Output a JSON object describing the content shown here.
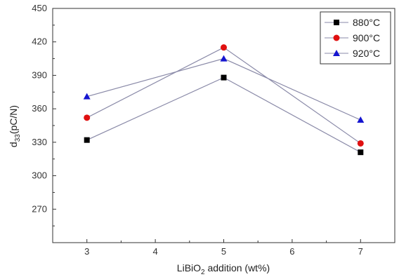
{
  "chart_data": {
    "type": "line",
    "xlabel": {
      "main": "LiBiO",
      "sub": "2",
      "rest": " addition (wt%)"
    },
    "ylabel": {
      "main": "d",
      "sub": "33",
      "rest": "(pC/N)"
    },
    "x_ticks": [
      "3",
      "4",
      "5",
      "6",
      "7"
    ],
    "y_ticks": [
      "270",
      "300",
      "330",
      "360",
      "390",
      "420",
      "450"
    ],
    "xlim": [
      2.5,
      7.5
    ],
    "ylim": [
      240,
      450
    ],
    "grid": false,
    "legend_position": "top-right",
    "x": [
      3,
      5,
      7
    ],
    "series": [
      {
        "name": "880°C",
        "marker": "square",
        "color": "#000000",
        "values": [
          332,
          388,
          321
        ]
      },
      {
        "name": "900°C",
        "marker": "circle",
        "color": "#e01010",
        "values": [
          352,
          415,
          329
        ]
      },
      {
        "name": "920°C",
        "marker": "triangle",
        "color": "#1515d0",
        "values": [
          371,
          405,
          350
        ]
      }
    ],
    "line_color": "#8a8aa8"
  }
}
